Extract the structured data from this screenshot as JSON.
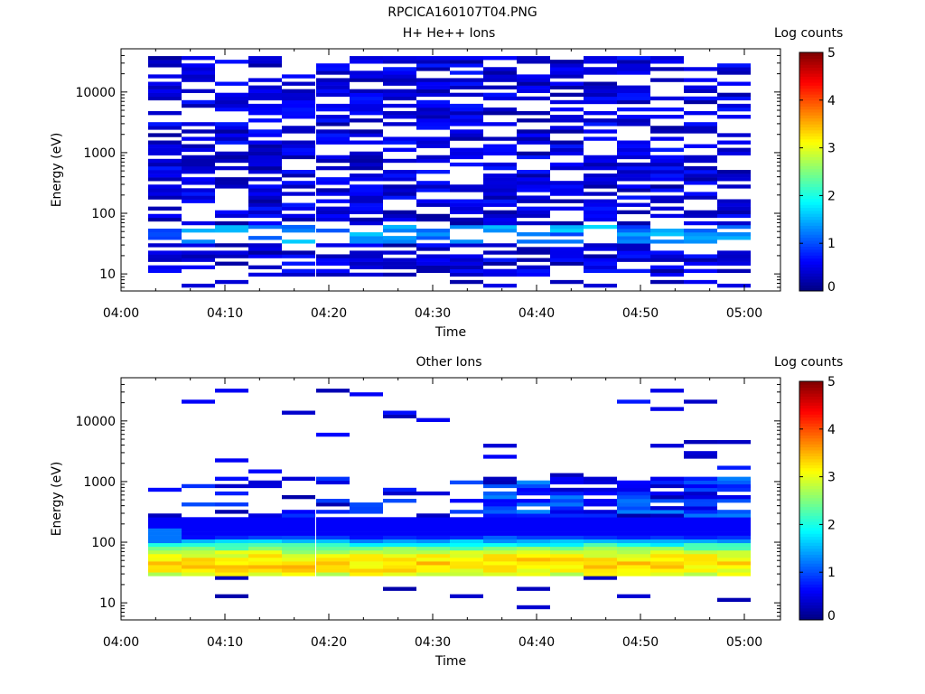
{
  "figure": {
    "title": "RPCICA160107T04.PNG"
  },
  "chart_data": [
    {
      "type": "heatmap",
      "title": "H+ He++ Ions",
      "xlabel": "Time",
      "ylabel": "Energy (eV)",
      "yscale": "log",
      "x_ticks": [
        "04:00",
        "04:10",
        "04:20",
        "04:30",
        "04:40",
        "04:50",
        "05:00"
      ],
      "y_ticks": [
        "10",
        "100",
        "1000",
        "10000"
      ],
      "colorbar_label": "Log counts",
      "colorbar_ticks": [
        "0",
        "1",
        "2",
        "3",
        "4",
        "5"
      ],
      "colorbar_range": [
        0,
        5
      ],
      "colormap": [
        "#00007f",
        "#0000ff",
        "#007fff",
        "#00ffff",
        "#7fff7f",
        "#ffff00",
        "#ff7f00",
        "#ff0000",
        "#7f0000"
      ],
      "time_bins": [
        "04:02",
        "04:05",
        "04:08",
        "04:12",
        "04:15",
        "04:18",
        "04:21",
        "04:24",
        "04:28",
        "04:31",
        "04:34",
        "04:37",
        "04:41",
        "04:44",
        "04:47",
        "04:50",
        "04:54",
        "04:57"
      ],
      "energy_range_eV": [
        6,
        45000
      ],
      "description_of_values": "Sparse log counts, mostly 0.1-0.8 across all energies; enhanced band near 35-55 eV reaching about 1.3-1.6"
    },
    {
      "type": "heatmap",
      "title": "Other Ions",
      "xlabel": "Time",
      "ylabel": "Energy (eV)",
      "yscale": "log",
      "x_ticks": [
        "04:00",
        "04:10",
        "04:20",
        "04:30",
        "04:40",
        "04:50",
        "05:00"
      ],
      "y_ticks": [
        "10",
        "100",
        "1000",
        "10000"
      ],
      "colorbar_label": "Log counts",
      "colorbar_ticks": [
        "0",
        "1",
        "2",
        "3",
        "4",
        "5"
      ],
      "colorbar_range": [
        0,
        5
      ],
      "colormap": [
        "#00007f",
        "#0000ff",
        "#007fff",
        "#00ffff",
        "#7fff7f",
        "#ffff00",
        "#ff7f00",
        "#ff0000",
        "#7f0000"
      ],
      "time_bins": [
        "04:02",
        "04:05",
        "04:08",
        "04:12",
        "04:15",
        "04:18",
        "04:21",
        "04:24",
        "04:28",
        "04:31",
        "04:34",
        "04:37",
        "04:41",
        "04:44",
        "04:47",
        "04:50",
        "04:54",
        "04:57"
      ],
      "energy_range_eV": [
        6,
        45000
      ],
      "description_of_values": "Dense population 30-250 eV with peak log counts about 3.0-3.6 near 40-55 eV; sparse low counts above 1000 eV"
    }
  ]
}
